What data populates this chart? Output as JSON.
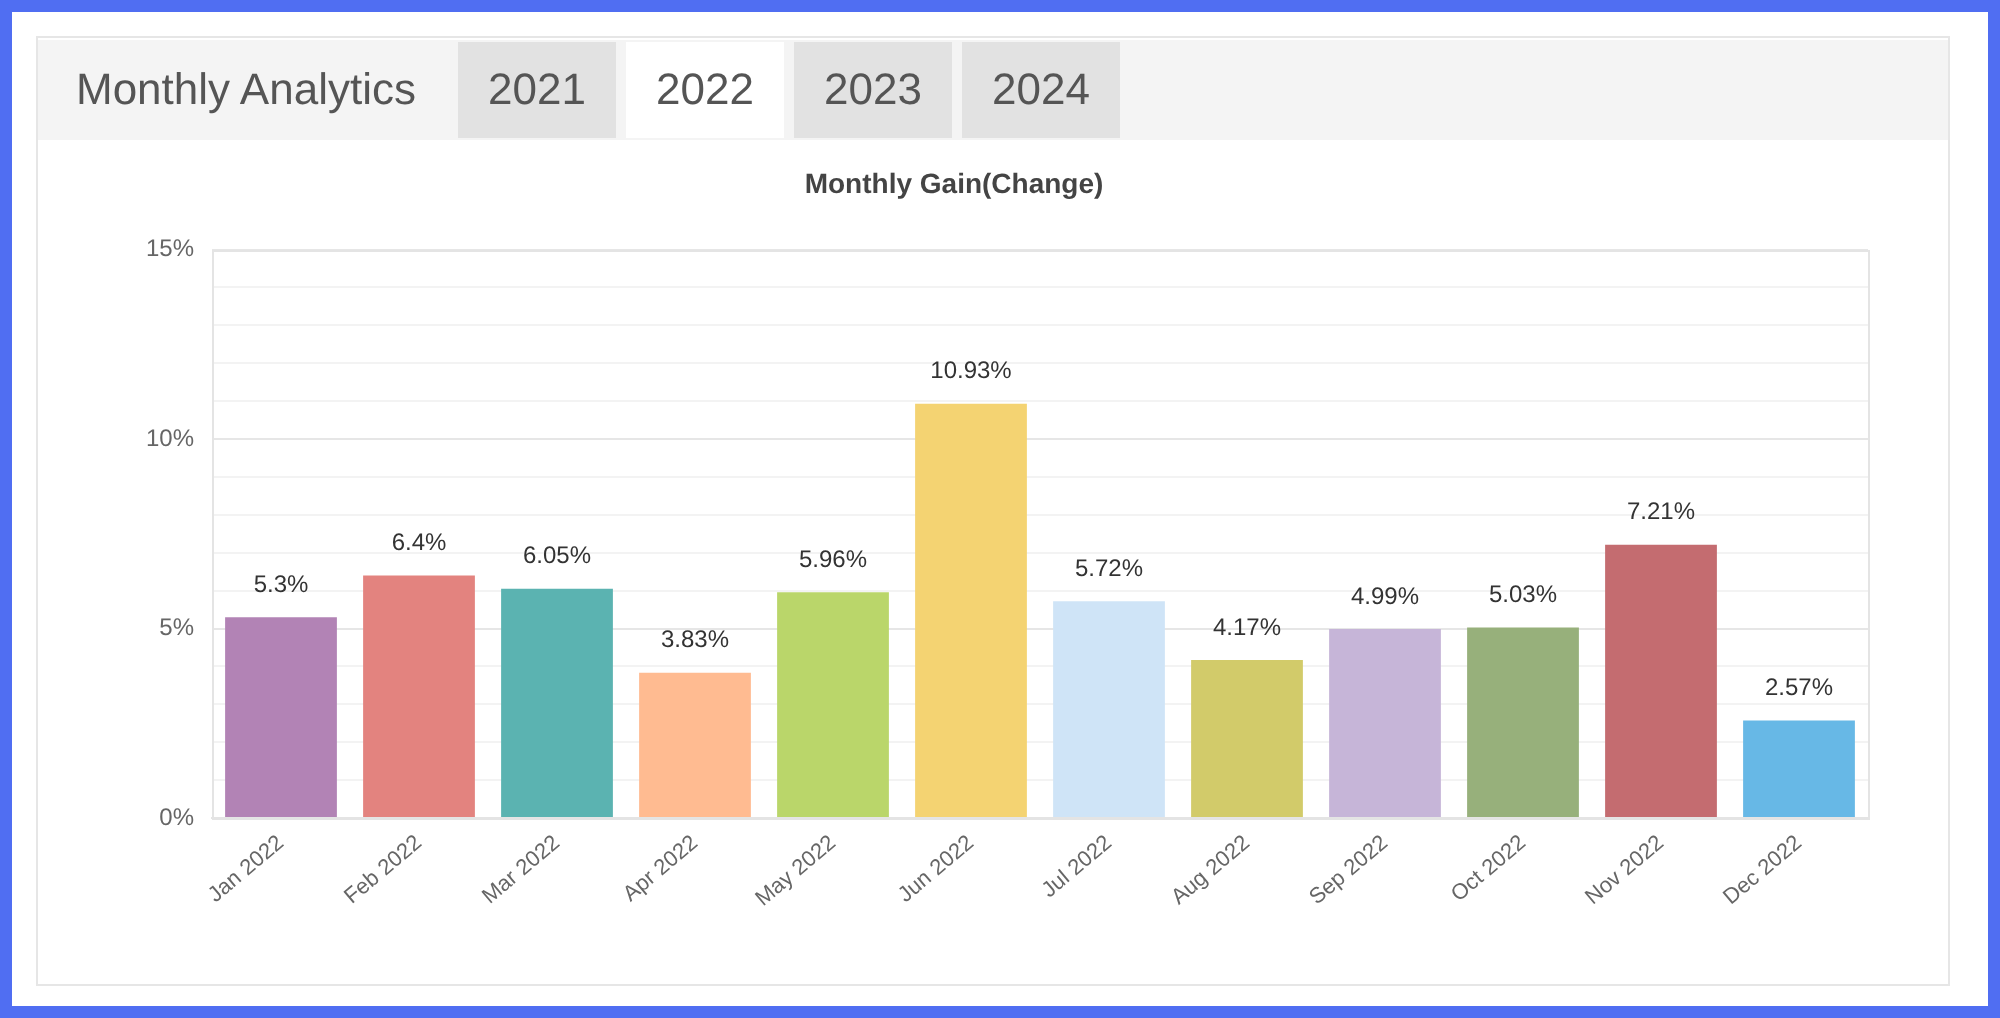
{
  "chart_data": {
    "type": "bar",
    "title": "Monthly Gain(Change)",
    "annotations": [
      "Monthly Analytics",
      "2021",
      "2022",
      "2023",
      "2024"
    ],
    "categories": [
      "Jan 2022",
      "Feb 2022",
      "Mar 2022",
      "Apr 2022",
      "May 2022",
      "Jun 2022",
      "Jul 2022",
      "Aug 2022",
      "Sep 2022",
      "Oct 2022",
      "Nov 2022",
      "Dec 2022"
    ],
    "values": [
      5.3,
      6.4,
      6.05,
      3.83,
      5.96,
      10.93,
      5.72,
      4.17,
      4.99,
      5.03,
      7.21,
      2.57
    ],
    "value_labels": [
      "5.3%",
      "6.4%",
      "6.05%",
      "3.83%",
      "5.96%",
      "10.93%",
      "5.72%",
      "4.17%",
      "4.99%",
      "5.03%",
      "7.21%",
      "2.57%"
    ],
    "colors": [
      "#b283b5",
      "#e3837f",
      "#5bb3b1",
      "#ffbb91",
      "#bad66a",
      "#f4d372",
      "#cfe4f7",
      "#d2cb6a",
      "#c6b5d8",
      "#97b07b",
      "#c46c70",
      "#67b8e6"
    ],
    "ylim": [
      0,
      15
    ],
    "yticks": [
      {
        "value": 0,
        "label": "0%"
      },
      {
        "value": 1,
        "label": null
      },
      {
        "value": 2,
        "label": null
      },
      {
        "value": 3,
        "label": null
      },
      {
        "value": 4,
        "label": null
      },
      {
        "value": 5,
        "label": "5%"
      },
      {
        "value": 6,
        "label": null
      },
      {
        "value": 7,
        "label": null
      },
      {
        "value": 8,
        "label": null
      },
      {
        "value": 9,
        "label": null
      },
      {
        "value": 10,
        "label": "10%"
      },
      {
        "value": 11,
        "label": null
      },
      {
        "value": 12,
        "label": null
      },
      {
        "value": 13,
        "label": null
      },
      {
        "value": 14,
        "label": null
      },
      {
        "value": 15,
        "label": "15%"
      }
    ],
    "grid": "y"
  }
}
